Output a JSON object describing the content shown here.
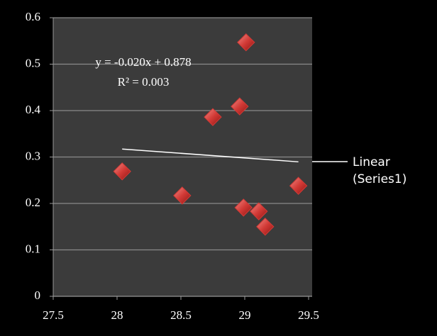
{
  "chart_data": {
    "type": "scatter",
    "x": [
      28.04,
      28.51,
      28.75,
      28.96,
      29.01,
      28.99,
      29.11,
      29.16,
      29.42
    ],
    "series": [
      {
        "name": "Series1",
        "color": "#d23a36",
        "values": [
          0.269,
          0.217,
          0.386,
          0.409,
          0.547,
          0.191,
          0.183,
          0.15,
          0.238
        ]
      }
    ],
    "trendline": {
      "name": "Linear (Series1)",
      "slope": -0.02,
      "intercept": 0.878,
      "equation": "y = -0.020x + 0.878",
      "r_squared": "R² = 0.003"
    },
    "xlim": [
      27.5,
      29.5
    ],
    "xticks": [
      27.5,
      28,
      28.5,
      29,
      29.5
    ],
    "ylim": [
      0,
      0.6
    ],
    "yticks": [
      0,
      0.1,
      0.2,
      0.3,
      0.4,
      0.5,
      0.6
    ],
    "grid": true
  }
}
